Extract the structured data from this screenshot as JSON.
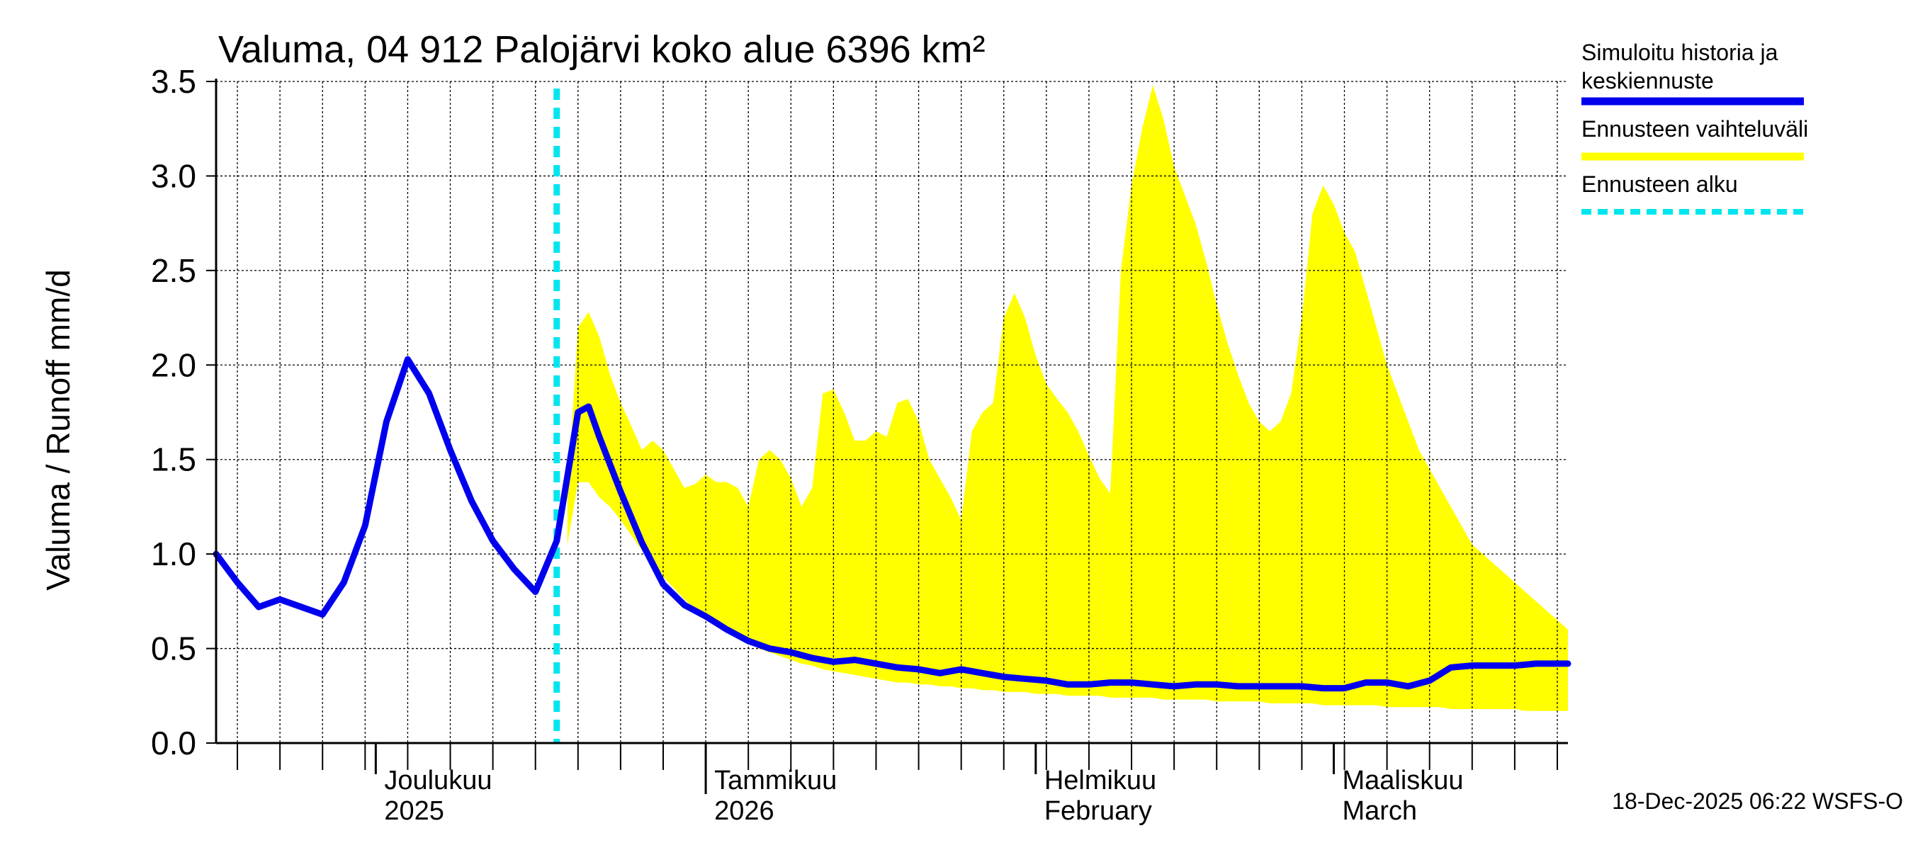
{
  "chart_data": {
    "type": "line",
    "title": "Valuma, 04 912 Palojärvi koko alue 6396 km²",
    "ylabel": "Valuma / Runoff    mm/d",
    "ylim": [
      0,
      3.5
    ],
    "yticks": [
      "0.0",
      "0.5",
      "1.0",
      "1.5",
      "2.0",
      "2.5",
      "3.0",
      "3.5"
    ],
    "xlim_days": [
      0,
      127
    ],
    "month_labels": [
      {
        "day": 15,
        "line1": "Joulukuu",
        "line2": "2025"
      },
      {
        "day": 46,
        "line1": "Tammikuu",
        "line2": "2026"
      },
      {
        "day": 77,
        "line1": "Helmikuu",
        "line2": "February"
      },
      {
        "day": 105,
        "line1": "Maaliskuu",
        "line2": "March"
      }
    ],
    "forecast_start_day": 32,
    "history": {
      "name": "Simuloitu historia ja keskiennuste",
      "color": "#0000ee",
      "x": [
        0,
        2,
        4,
        6,
        8,
        10,
        12,
        14,
        16,
        18,
        20,
        22,
        24,
        26,
        28,
        30,
        32,
        34,
        35,
        36,
        38,
        40,
        42,
        44,
        46,
        48,
        50,
        52,
        54,
        56,
        58,
        60,
        62,
        64,
        66,
        68,
        70,
        72,
        74,
        76,
        78,
        80,
        82,
        84,
        86,
        88,
        90,
        92,
        94,
        96,
        98,
        100,
        102,
        104,
        106,
        108,
        110,
        112,
        114,
        116,
        118,
        120,
        122,
        124,
        127
      ],
      "y": [
        1.0,
        0.85,
        0.72,
        0.76,
        0.72,
        0.68,
        0.85,
        1.15,
        1.7,
        2.03,
        1.85,
        1.55,
        1.28,
        1.07,
        0.92,
        0.8,
        1.07,
        1.75,
        1.78,
        1.62,
        1.33,
        1.06,
        0.84,
        0.73,
        0.67,
        0.6,
        0.54,
        0.5,
        0.48,
        0.45,
        0.43,
        0.44,
        0.42,
        0.4,
        0.39,
        0.37,
        0.39,
        0.37,
        0.35,
        0.34,
        0.33,
        0.31,
        0.31,
        0.32,
        0.32,
        0.31,
        0.3,
        0.31,
        0.31,
        0.3,
        0.3,
        0.3,
        0.3,
        0.29,
        0.29,
        0.32,
        0.32,
        0.3,
        0.33,
        0.4,
        0.41,
        0.41,
        0.41,
        0.42,
        0.42
      ]
    },
    "range": {
      "name": "Ennusteen vaihteluväli",
      "color": "#ffff00",
      "x": [
        33,
        34,
        35,
        36,
        37,
        38,
        39,
        40,
        41,
        42,
        43,
        44,
        45,
        46,
        47,
        48,
        49,
        50,
        51,
        52,
        53,
        54,
        55,
        56,
        57,
        58,
        59,
        60,
        61,
        62,
        63,
        64,
        65,
        66,
        67,
        68,
        69,
        70,
        71,
        72,
        73,
        74,
        75,
        76,
        77,
        78,
        79,
        80,
        81,
        82,
        83,
        84,
        85,
        86,
        87,
        88,
        89,
        90,
        91,
        92,
        93,
        94,
        95,
        96,
        97,
        98,
        99,
        100,
        101,
        102,
        103,
        104,
        105,
        106,
        107,
        108,
        109,
        110,
        111,
        112,
        113,
        114,
        115,
        116,
        117,
        118,
        119,
        120,
        121,
        122,
        123,
        124,
        125,
        126,
        127
      ],
      "upper": [
        1.3,
        2.2,
        2.28,
        2.15,
        1.95,
        1.8,
        1.68,
        1.55,
        1.6,
        1.55,
        1.45,
        1.35,
        1.37,
        1.42,
        1.38,
        1.38,
        1.35,
        1.25,
        1.5,
        1.55,
        1.5,
        1.4,
        1.25,
        1.35,
        1.85,
        1.87,
        1.75,
        1.6,
        1.6,
        1.65,
        1.62,
        1.8,
        1.82,
        1.7,
        1.5,
        1.4,
        1.3,
        1.18,
        1.65,
        1.75,
        1.8,
        2.25,
        2.38,
        2.25,
        2.05,
        1.9,
        1.82,
        1.75,
        1.65,
        1.52,
        1.4,
        1.32,
        2.5,
        2.95,
        3.25,
        3.48,
        3.3,
        3.05,
        2.9,
        2.75,
        2.55,
        2.32,
        2.12,
        1.95,
        1.8,
        1.7,
        1.65,
        1.7,
        1.85,
        2.25,
        2.8,
        2.95,
        2.85,
        2.7,
        2.6,
        2.4,
        2.2,
        2.0,
        1.85,
        1.7,
        1.55,
        1.45,
        1.35,
        1.25,
        1.15,
        1.05,
        1.0,
        0.95,
        0.9,
        0.85,
        0.8,
        0.75,
        0.7,
        0.65,
        0.6
      ],
      "lower": [
        1.05,
        1.38,
        1.38,
        1.3,
        1.25,
        1.18,
        1.1,
        1.02,
        0.95,
        0.88,
        0.82,
        0.76,
        0.71,
        0.67,
        0.63,
        0.59,
        0.56,
        0.53,
        0.5,
        0.48,
        0.46,
        0.44,
        0.42,
        0.41,
        0.39,
        0.38,
        0.37,
        0.36,
        0.35,
        0.34,
        0.33,
        0.32,
        0.32,
        0.31,
        0.31,
        0.3,
        0.3,
        0.29,
        0.29,
        0.28,
        0.28,
        0.27,
        0.27,
        0.27,
        0.26,
        0.26,
        0.26,
        0.25,
        0.25,
        0.25,
        0.25,
        0.24,
        0.24,
        0.24,
        0.24,
        0.24,
        0.23,
        0.23,
        0.23,
        0.23,
        0.23,
        0.22,
        0.22,
        0.22,
        0.22,
        0.22,
        0.21,
        0.21,
        0.21,
        0.21,
        0.21,
        0.2,
        0.2,
        0.2,
        0.2,
        0.2,
        0.2,
        0.19,
        0.19,
        0.19,
        0.19,
        0.19,
        0.19,
        0.18,
        0.18,
        0.18,
        0.18,
        0.18,
        0.18,
        0.18,
        0.17,
        0.17,
        0.17,
        0.17,
        0.17
      ]
    },
    "legend": [
      {
        "label_line1": "Simuloitu historia ja",
        "label_line2": "keskiennuste",
        "color": "#0000ee",
        "style": "solid"
      },
      {
        "label_line1": "Ennusteen vaihteluväli",
        "label_line2": "",
        "color": "#ffff00",
        "style": "solid"
      },
      {
        "label_line1": "Ennusteen alku",
        "label_line2": "",
        "color": "#00e5ee",
        "style": "dashed"
      }
    ],
    "timestamp": "18-Dec-2025 06:22 WSFS-O"
  }
}
